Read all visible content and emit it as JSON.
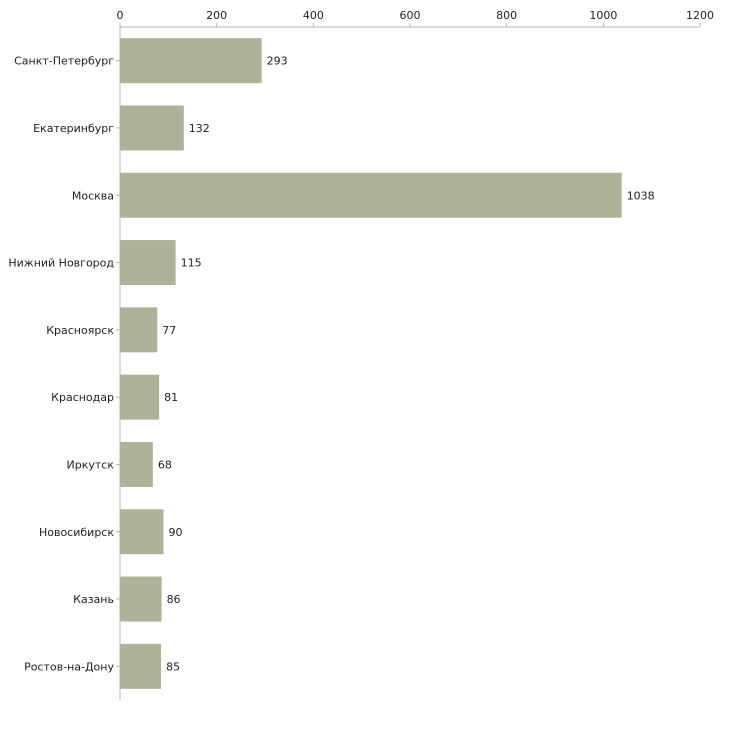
{
  "chart_data": {
    "type": "bar",
    "orientation": "horizontal",
    "title": "",
    "xlabel": "",
    "ylabel": "",
    "xlim": [
      0,
      1200
    ],
    "x_ticks": [
      0,
      200,
      400,
      600,
      800,
      1000,
      1200
    ],
    "x_axis_position": "top",
    "grid": false,
    "categories": [
      "Санкт-Петербург",
      "Екатеринбург",
      "Москва",
      "Нижний Новгород",
      "Красноярск",
      "Краснодар",
      "Иркутск",
      "Новосибирск",
      "Казань",
      "Ростов-на-Дону"
    ],
    "values": [
      293,
      132,
      1038,
      115,
      77,
      81,
      68,
      90,
      86,
      85
    ],
    "bar_color": "#adb399"
  }
}
